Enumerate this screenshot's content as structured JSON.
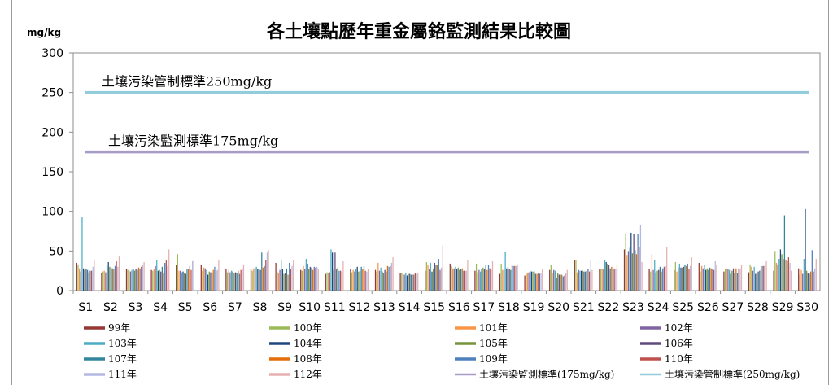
{
  "chart_data": {
    "type": "bar",
    "title": "各土壤點歷年重金屬鉻監測結果比較圖",
    "ylabel": "mg/kg",
    "ylim": [
      0,
      300
    ],
    "yticks": [
      0,
      50,
      100,
      150,
      200,
      250,
      300
    ],
    "categories": [
      "S1",
      "S2",
      "S3",
      "S4",
      "S5",
      "S6",
      "S7",
      "S8",
      "S9",
      "S10",
      "S11",
      "S12",
      "S13",
      "S14",
      "S15",
      "S16",
      "S17",
      "S18",
      "S19",
      "S20",
      "S21",
      "S22",
      "S23",
      "S24",
      "S25",
      "S26",
      "S27",
      "S28",
      "S29",
      "S30"
    ],
    "series": [
      {
        "name": "99年",
        "color": "#953735",
        "values": [
          35,
          22,
          27,
          26,
          32,
          32,
          27,
          27,
          35,
          26,
          21,
          27,
          26,
          22,
          25,
          34,
          25,
          21,
          19,
          26,
          39,
          27,
          52,
          27,
          26,
          35,
          24,
          23,
          25,
          28
        ]
      },
      {
        "name": "100年",
        "color": "#9bbb59",
        "values": [
          33,
          24,
          26,
          25,
          46,
          25,
          23,
          25,
          24,
          25,
          23,
          23,
          24,
          22,
          36,
          31,
          34,
          34,
          21,
          32,
          38,
          27,
          72,
          24,
          36,
          24,
          27,
          33,
          50,
          20
        ]
      },
      {
        "name": "101年",
        "color": "#f79646",
        "values": [
          28,
          25,
          25,
          27,
          25,
          29,
          26,
          28,
          22,
          31,
          22,
          26,
          35,
          21,
          32,
          28,
          23,
          26,
          22,
          22,
          23,
          27,
          45,
          46,
          24,
          31,
          28,
          30,
          35,
          26
        ]
      },
      {
        "name": "102年",
        "color": "#8064a2",
        "values": [
          24,
          23,
          24,
          31,
          25,
          28,
          23,
          28,
          26,
          27,
          23,
          24,
          25,
          20,
          27,
          28,
          26,
          26,
          23,
          26,
          26,
          27,
          50,
          26,
          29,
          28,
          27,
          25,
          33,
          21
        ]
      },
      {
        "name": "103年",
        "color": "#4bacc6",
        "values": [
          93,
          31,
          26,
          38,
          23,
          26,
          25,
          30,
          39,
          40,
          52,
          27,
          29,
          22,
          35,
          30,
          24,
          49,
          25,
          25,
          25,
          39,
          54,
          38,
          34,
          32,
          26,
          30,
          40,
          40
        ]
      },
      {
        "name": "104年",
        "color": "#1f497d",
        "values": [
          28,
          36,
          27,
          25,
          24,
          20,
          24,
          27,
          27,
          34,
          48,
          30,
          24,
          19,
          24,
          27,
          27,
          28,
          24,
          16,
          25,
          36,
          73,
          23,
          29,
          26,
          21,
          21,
          52,
          103
        ]
      },
      {
        "name": "105年",
        "color": "#77933c",
        "values": [
          26,
          30,
          25,
          26,
          22,
          24,
          22,
          27,
          21,
          27,
          26,
          24,
          22,
          21,
          27,
          29,
          29,
          30,
          24,
          22,
          25,
          34,
          47,
          25,
          29,
          28,
          25,
          23,
          46,
          25
        ]
      },
      {
        "name": "106年",
        "color": "#604a7b",
        "values": [
          27,
          29,
          27,
          24,
          21,
          23,
          23,
          26,
          22,
          30,
          48,
          25,
          26,
          21,
          35,
          26,
          27,
          27,
          24,
          20,
          24,
          32,
          71,
          26,
          30,
          26,
          28,
          24,
          40,
          22
        ]
      },
      {
        "name": "107年",
        "color": "#31859c",
        "values": [
          26,
          28,
          26,
          30,
          27,
          22,
          22,
          48,
          28,
          29,
          27,
          30,
          24,
          20,
          32,
          27,
          32,
          26,
          21,
          20,
          24,
          28,
          51,
          30,
          32,
          29,
          22,
          25,
          95,
          21
        ]
      },
      {
        "name": "108年",
        "color": "#e46c0a",
        "values": [
          23,
          27,
          29,
          22,
          27,
          26,
          25,
          29,
          20,
          26,
          29,
          27,
          31,
          20,
          32,
          28,
          26,
          32,
          21,
          20,
          25,
          30,
          46,
          24,
          31,
          28,
          28,
          27,
          39,
          24
        ]
      },
      {
        "name": "109年",
        "color": "#4f81bd",
        "values": [
          25,
          31,
          28,
          35,
          31,
          30,
          21,
          31,
          35,
          30,
          25,
          31,
          30,
          20,
          40,
          25,
          32,
          31,
          22,
          18,
          27,
          28,
          71,
          28,
          34,
          27,
          22,
          31,
          37,
          51
        ]
      },
      {
        "name": "110年",
        "color": "#c0504d",
        "values": [
          25,
          37,
          30,
          38,
          26,
          25,
          26,
          38,
          27,
          29,
          25,
          25,
          31,
          22,
          26,
          25,
          28,
          31,
          21,
          19,
          24,
          27,
          55,
          30,
          27,
          26,
          28,
          31,
          42,
          24
        ]
      },
      {
        "name": "111年",
        "color": "#b3b9e0",
        "values": [
          30,
          30,
          33,
          31,
          37,
          26,
          28,
          48,
          31,
          30,
          24,
          24,
          35,
          21,
          29,
          25,
          26,
          31,
          22,
          22,
          38,
          27,
          83,
          31,
          31,
          37,
          27,
          32,
          35,
          28
        ]
      },
      {
        "name": "112年",
        "color": "#e6b0b0",
        "values": [
          39,
          44,
          36,
          52,
          38,
          39,
          33,
          51,
          38,
          27,
          37,
          27,
          42,
          22,
          57,
          39,
          37,
          33,
          27,
          26,
          26,
          32,
          36,
          55,
          42,
          33,
          32,
          37,
          25,
          40
        ]
      }
    ],
    "reference_lines": [
      {
        "name": "土壤污染監測標準(175mg/kg)",
        "label": "土壤污染監測標準175mg/kg",
        "value": 175,
        "color": "#a79bc8"
      },
      {
        "name": "土壤污染管制標準(250mg/kg)",
        "label": "土壤污染管制標準250mg/kg",
        "value": 250,
        "color": "#93cddd"
      }
    ],
    "grid": false,
    "legend_position": "bottom"
  }
}
